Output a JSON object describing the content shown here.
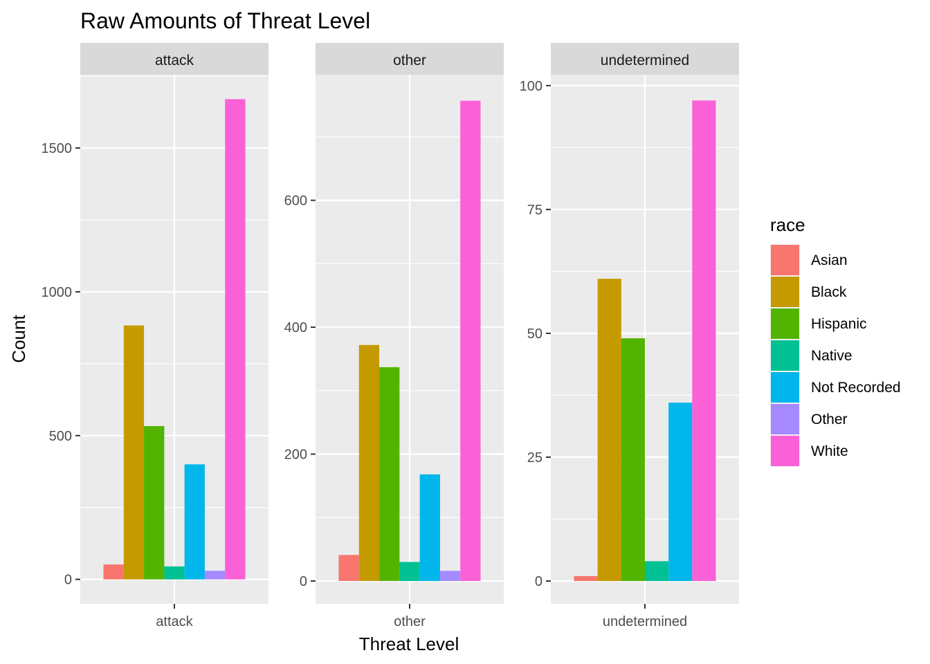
{
  "chart_data": {
    "type": "bar",
    "title": "Raw Amounts of Threat Level",
    "xlabel": "Threat Level",
    "ylabel": "Count",
    "legend": {
      "title": "race",
      "placement": "right",
      "entries": [
        "Asian",
        "Black",
        "Hispanic",
        "Native",
        "Not Recorded",
        "Other",
        "White"
      ]
    },
    "colors": {
      "Asian": "#F8766D",
      "Black": "#C49A00",
      "Hispanic": "#53B400",
      "Native": "#00C094",
      "Not Recorded": "#00B6EB",
      "Other": "#A58AFF",
      "White": "#FB61D7"
    },
    "grid": true,
    "facets": [
      {
        "label": "attack",
        "category": "attack",
        "ylim": [
          -85,
          1755
        ],
        "yticks": [
          0,
          500,
          1000,
          1500
        ],
        "series": [
          {
            "name": "Asian",
            "value": 52
          },
          {
            "name": "Black",
            "value": 883
          },
          {
            "name": "Hispanic",
            "value": 533
          },
          {
            "name": "Native",
            "value": 45
          },
          {
            "name": "Not Recorded",
            "value": 400
          },
          {
            "name": "Other",
            "value": 30
          },
          {
            "name": "White",
            "value": 1670
          }
        ]
      },
      {
        "label": "other",
        "category": "other",
        "ylim": [
          -36,
          798
        ],
        "yticks": [
          0,
          200,
          400,
          600
        ],
        "series": [
          {
            "name": "Asian",
            "value": 41
          },
          {
            "name": "Black",
            "value": 372
          },
          {
            "name": "Hispanic",
            "value": 337
          },
          {
            "name": "Native",
            "value": 30
          },
          {
            "name": "Not Recorded",
            "value": 168
          },
          {
            "name": "Other",
            "value": 16
          },
          {
            "name": "White",
            "value": 757
          }
        ]
      },
      {
        "label": "undetermined",
        "category": "undetermined",
        "ylim": [
          -4.6,
          102.2
        ],
        "yticks": [
          0,
          25,
          50,
          75,
          100
        ],
        "series": [
          {
            "name": "Asian",
            "value": 1
          },
          {
            "name": "Black",
            "value": 61
          },
          {
            "name": "Hispanic",
            "value": 49
          },
          {
            "name": "Native",
            "value": 4
          },
          {
            "name": "Not Recorded",
            "value": 36
          },
          {
            "name": "White",
            "value": 97
          }
        ]
      }
    ]
  }
}
